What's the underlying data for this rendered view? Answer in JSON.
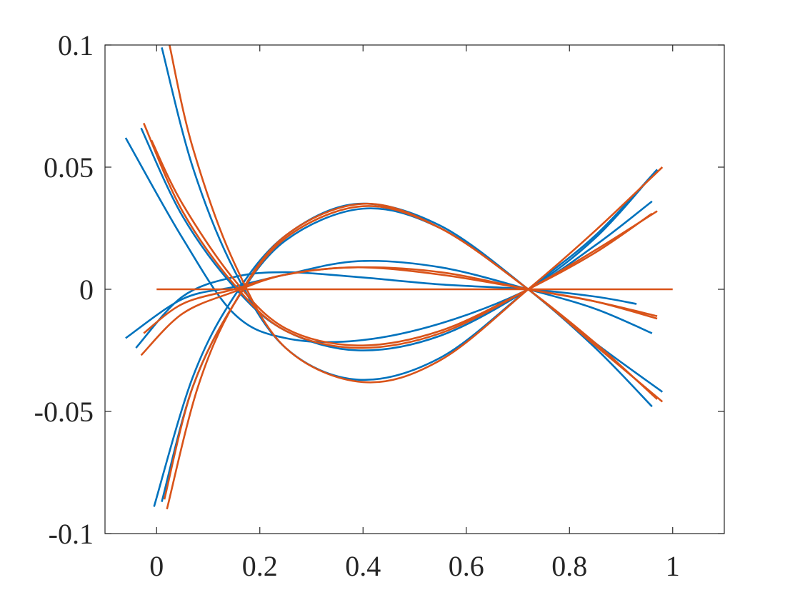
{
  "chart_data": {
    "type": "line",
    "title": "",
    "xlabel": "",
    "ylabel": "",
    "xlim": [
      -0.1,
      1.1
    ],
    "ylim": [
      -0.1,
      0.1
    ],
    "grid": false,
    "x_ticks": [
      0,
      0.2,
      0.4,
      0.6,
      0.8,
      1
    ],
    "x_tick_labels": [
      "0",
      "0.2",
      "0.4",
      "0.6",
      "0.8",
      "1"
    ],
    "y_ticks": [
      -0.1,
      -0.05,
      0,
      0.05,
      0.1
    ],
    "y_tick_labels": [
      "-0.1",
      "-0.05",
      "0",
      "0.05",
      "0.1"
    ],
    "colors": {
      "blue": "#0072BD",
      "orange": "#D95319"
    },
    "series": [
      {
        "color": "blue",
        "x": [
          -0.06,
          0.05,
          0.15,
          0.25,
          0.39,
          0.55,
          0.72,
          0.85,
          0.96
        ],
        "y": [
          0.062,
          0.021,
          -0.01,
          -0.02,
          -0.021,
          -0.014,
          0.0,
          0.018,
          0.036
        ]
      },
      {
        "color": "blue",
        "x": [
          -0.06,
          0.05,
          0.15,
          0.25,
          0.39,
          0.55,
          0.72,
          0.85,
          0.96
        ],
        "y": [
          -0.02,
          -0.004,
          0.001,
          0.006,
          0.0115,
          0.009,
          0.0,
          -0.008,
          -0.018
        ]
      },
      {
        "color": "blue",
        "x": [
          -0.04,
          0.05,
          0.15,
          0.25,
          0.39,
          0.55,
          0.72,
          0.85,
          0.93
        ],
        "y": [
          -0.024,
          -0.003,
          0.005,
          0.007,
          0.005,
          0.002,
          0.0,
          -0.003,
          -0.006
        ]
      },
      {
        "color": "blue",
        "x": [
          -0.03,
          0.05,
          0.15,
          0.25,
          0.39,
          0.55,
          0.72,
          0.85,
          0.97
        ],
        "y": [
          0.066,
          0.03,
          0.001,
          -0.017,
          -0.025,
          -0.019,
          0.0,
          0.021,
          0.049
        ]
      },
      {
        "color": "blue",
        "x": [
          -0.005,
          0.07,
          0.15,
          0.25,
          0.39,
          0.55,
          0.72,
          0.85,
          0.96
        ],
        "y": [
          -0.089,
          -0.036,
          -0.003,
          0.022,
          0.035,
          0.026,
          0.0,
          -0.024,
          -0.048
        ]
      },
      {
        "color": "blue",
        "x": [
          0.01,
          0.07,
          0.15,
          0.25,
          0.39,
          0.55,
          0.72,
          0.85,
          0.97
        ],
        "y": [
          0.099,
          0.05,
          0.008,
          -0.024,
          -0.037,
          -0.028,
          0.0,
          0.022,
          0.049
        ]
      },
      {
        "color": "blue",
        "x": [
          0.01,
          0.07,
          0.15,
          0.25,
          0.4,
          0.55,
          0.72,
          0.85,
          0.98
        ],
        "y": [
          -0.087,
          -0.04,
          -0.006,
          0.02,
          0.033,
          0.025,
          0.0,
          -0.022,
          -0.042
        ]
      },
      {
        "color": "orange",
        "x": [
          0.0,
          1.0
        ],
        "y": [
          0.0,
          0.0
        ]
      },
      {
        "color": "orange",
        "x": [
          -0.025,
          0.05,
          0.15,
          0.25,
          0.39,
          0.55,
          0.72,
          0.85,
          0.97
        ],
        "y": [
          0.068,
          0.032,
          0.002,
          -0.017,
          -0.024,
          -0.018,
          0.0,
          0.016,
          0.032
        ]
      },
      {
        "color": "orange",
        "x": [
          -0.025,
          0.05,
          0.15,
          0.25,
          0.39,
          0.55,
          0.72,
          0.85,
          0.97
        ],
        "y": [
          -0.018,
          -0.006,
          0.0,
          0.006,
          0.009,
          0.006,
          0.0,
          -0.005,
          -0.012
        ]
      },
      {
        "color": "orange",
        "x": [
          -0.03,
          0.05,
          0.15,
          0.25,
          0.39,
          0.55,
          0.72,
          0.85,
          0.97
        ],
        "y": [
          -0.027,
          -0.01,
          -0.001,
          0.006,
          0.009,
          0.007,
          0.0,
          -0.005,
          -0.011
        ]
      },
      {
        "color": "orange",
        "x": [
          -0.01,
          0.05,
          0.15,
          0.25,
          0.39,
          0.55,
          0.72,
          0.85,
          0.96
        ],
        "y": [
          0.061,
          0.035,
          0.004,
          -0.016,
          -0.023,
          -0.017,
          0.0,
          0.015,
          0.031
        ]
      },
      {
        "color": "orange",
        "x": [
          0.025,
          0.07,
          0.15,
          0.25,
          0.4,
          0.55,
          0.72,
          0.85,
          0.98
        ],
        "y": [
          0.1,
          0.058,
          0.011,
          -0.024,
          -0.038,
          -0.029,
          0.0,
          0.024,
          0.05
        ]
      },
      {
        "color": "orange",
        "x": [
          0.02,
          0.08,
          0.15,
          0.25,
          0.4,
          0.55,
          0.72,
          0.85,
          0.98
        ],
        "y": [
          -0.09,
          -0.04,
          -0.006,
          0.022,
          0.035,
          0.025,
          0.0,
          -0.023,
          -0.046
        ]
      },
      {
        "color": "orange",
        "x": [
          0.015,
          0.07,
          0.15,
          0.25,
          0.4,
          0.55,
          0.72,
          0.85,
          0.97
        ],
        "y": [
          -0.086,
          -0.04,
          -0.006,
          0.021,
          0.034,
          0.025,
          0.0,
          -0.022,
          -0.045
        ]
      }
    ]
  }
}
